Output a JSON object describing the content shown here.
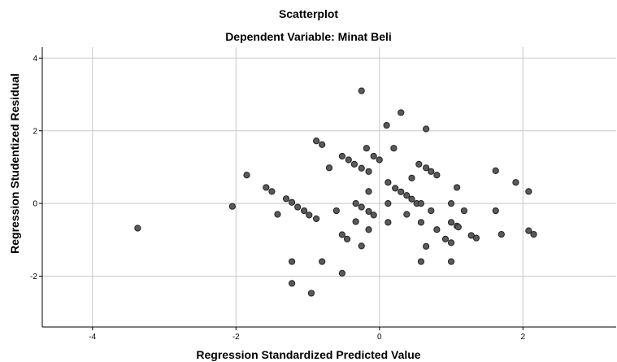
{
  "chart_data": {
    "type": "scatter",
    "title": "Scatterplot",
    "subtitle": "Dependent Variable: Minat Beli",
    "xlabel": "Regression Standardized Predicted Value",
    "ylabel": "Regression Studentized Residual",
    "xlim": [
      -4.7,
      3.3
    ],
    "ylim": [
      -3.4,
      4.3
    ],
    "xticks": [
      -4,
      -2,
      0,
      2
    ],
    "yticks": [
      -2,
      0,
      2,
      4
    ],
    "grid": true,
    "marker_color": "#5a5a5a",
    "marker_edge": "#222222",
    "points": [
      [
        -3.37,
        -0.68
      ],
      [
        -2.05,
        -0.08
      ],
      [
        -1.85,
        0.78
      ],
      [
        -1.58,
        0.44
      ],
      [
        -1.5,
        0.33
      ],
      [
        -1.42,
        -0.3
      ],
      [
        -1.3,
        0.13
      ],
      [
        -1.22,
        -1.6
      ],
      [
        -1.22,
        -2.2
      ],
      [
        -1.22,
        0.03
      ],
      [
        -1.14,
        -0.1
      ],
      [
        -1.05,
        -0.2
      ],
      [
        -0.98,
        -0.32
      ],
      [
        -0.95,
        -2.47
      ],
      [
        -0.88,
        -0.42
      ],
      [
        -0.88,
        1.72
      ],
      [
        -0.8,
        1.62
      ],
      [
        -0.8,
        -1.6
      ],
      [
        -0.7,
        0.98
      ],
      [
        -0.6,
        -0.2
      ],
      [
        -0.52,
        -0.86
      ],
      [
        -0.52,
        -1.92
      ],
      [
        -0.52,
        1.3
      ],
      [
        -0.45,
        -0.98
      ],
      [
        -0.43,
        1.2
      ],
      [
        -0.35,
        1.08
      ],
      [
        -0.33,
        0.0
      ],
      [
        -0.33,
        -0.5
      ],
      [
        -0.25,
        3.1
      ],
      [
        -0.25,
        0.97
      ],
      [
        -0.25,
        -1.17
      ],
      [
        -0.25,
        -0.1
      ],
      [
        -0.18,
        1.52
      ],
      [
        -0.15,
        0.88
      ],
      [
        -0.15,
        0.33
      ],
      [
        -0.15,
        -0.22
      ],
      [
        -0.15,
        -0.72
      ],
      [
        -0.08,
        1.3
      ],
      [
        -0.08,
        -0.32
      ],
      [
        0.0,
        1.2
      ],
      [
        0.1,
        2.15
      ],
      [
        0.12,
        0.58
      ],
      [
        0.12,
        0.0
      ],
      [
        0.12,
        -0.52
      ],
      [
        0.2,
        1.52
      ],
      [
        0.22,
        0.42
      ],
      [
        0.3,
        2.5
      ],
      [
        0.3,
        0.32
      ],
      [
        0.38,
        0.22
      ],
      [
        0.38,
        -0.3
      ],
      [
        0.45,
        0.7
      ],
      [
        0.45,
        0.12
      ],
      [
        0.52,
        0.0
      ],
      [
        0.55,
        1.08
      ],
      [
        0.58,
        0.0
      ],
      [
        0.58,
        -0.52
      ],
      [
        0.58,
        -1.6
      ],
      [
        0.65,
        2.05
      ],
      [
        0.65,
        -1.18
      ],
      [
        0.65,
        0.98
      ],
      [
        0.72,
        0.88
      ],
      [
        0.72,
        -0.2
      ],
      [
        0.8,
        -0.72
      ],
      [
        0.8,
        0.78
      ],
      [
        0.92,
        -0.98
      ],
      [
        1.0,
        0.0
      ],
      [
        1.0,
        -0.52
      ],
      [
        1.0,
        -1.08
      ],
      [
        1.0,
        -1.6
      ],
      [
        1.08,
        0.44
      ],
      [
        1.08,
        -0.62
      ],
      [
        1.1,
        -0.65
      ],
      [
        1.18,
        -0.2
      ],
      [
        1.28,
        -0.88
      ],
      [
        1.35,
        -0.95
      ],
      [
        1.62,
        0.9
      ],
      [
        1.62,
        -0.2
      ],
      [
        1.7,
        -0.85
      ],
      [
        1.9,
        0.58
      ],
      [
        2.08,
        0.33
      ],
      [
        2.08,
        -0.75
      ],
      [
        2.15,
        -0.85
      ]
    ]
  }
}
